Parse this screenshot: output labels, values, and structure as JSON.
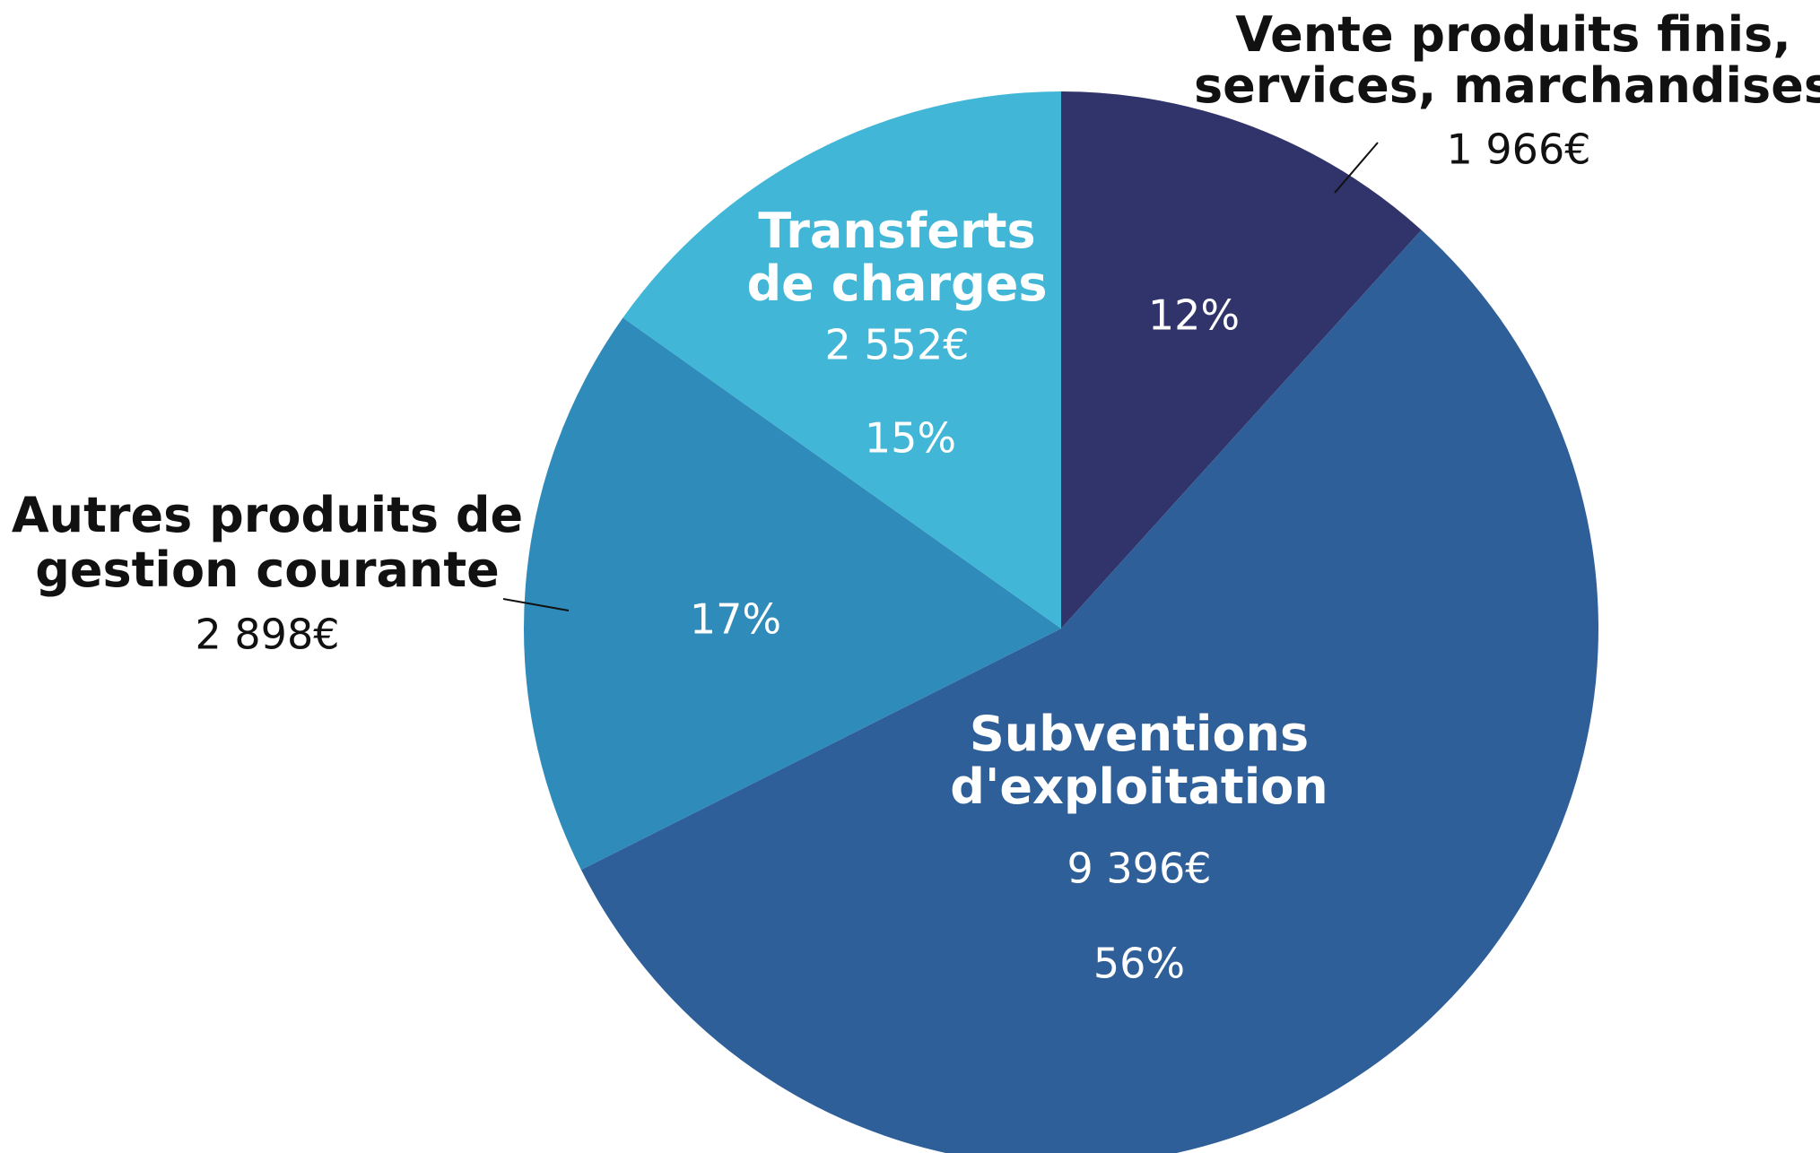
{
  "chart_data": {
    "type": "pie",
    "categories": [
      "Vente produits finis,\nservices, marchandises",
      "Subventions\nd'exploitation",
      "Autres produits de\ngestion courante",
      "Transferts\nde charges"
    ],
    "values": [
      1966,
      9396,
      2898,
      2552
    ],
    "value_labels": [
      "1 966€",
      "9 396€",
      "2 898€",
      "2 552€"
    ],
    "percent_labels": [
      "12%",
      "56%",
      "17%",
      "15%"
    ],
    "colors": [
      "#31336b",
      "#2f5f98",
      "#2e8bba",
      "#41b6d6"
    ]
  }
}
